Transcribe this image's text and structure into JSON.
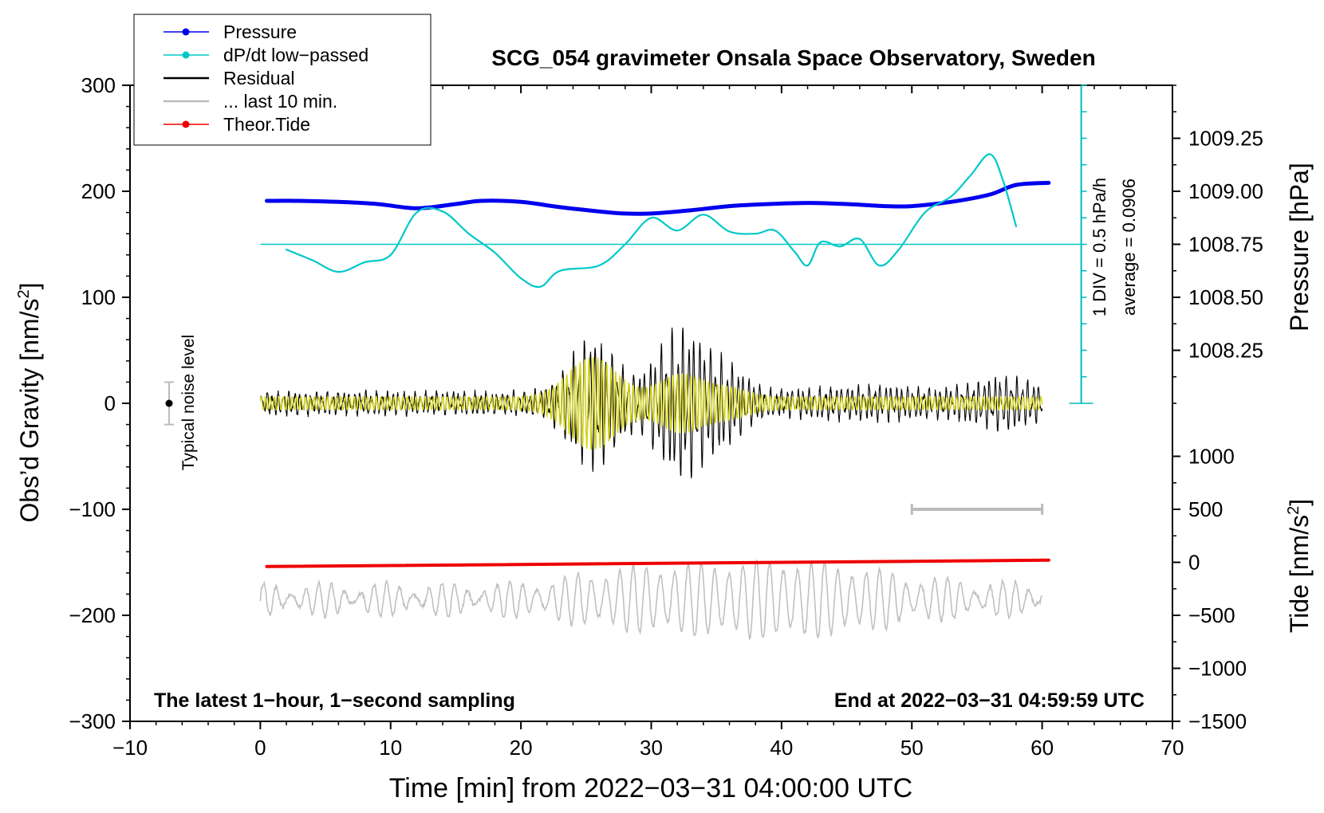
{
  "chart_data": {
    "type": "line",
    "title": "SCG_054 gravimeter Onsala Space Observatory, Sweden",
    "xlabel": "Time [min] from 2022−03−31 04:00:00 UTC",
    "ylabel_left": "Obs’d Gravity [nm/s²]",
    "ylabel_left_main": "Obs’d Gravity [nm/s",
    "ylabel_left_sup": "2",
    "ylabel_left_end": "]",
    "ylabel_right_pressure": "Pressure [hPa]",
    "ylabel_right_tide": "Tide [nm/s²]",
    "ylabel_right_tide_main": "Tide [nm/s",
    "ylabel_right_tide_sup": "2",
    "ylabel_right_tide_end": "]",
    "xlim": [
      -10,
      70
    ],
    "ylim_left": [
      -300,
      300
    ],
    "x_ticks": [
      -10,
      0,
      10,
      20,
      30,
      40,
      50,
      60,
      70
    ],
    "x_tick_labels": [
      "−10",
      "0",
      "10",
      "20",
      "30",
      "40",
      "50",
      "60",
      "70"
    ],
    "y_left_ticks": [
      -300,
      -200,
      -100,
      0,
      100,
      200,
      300
    ],
    "y_left_tick_labels": [
      "−300",
      "−200",
      "−100",
      "0",
      "100",
      "200",
      "300"
    ],
    "pressure_axis": {
      "ticks": [
        1008.25,
        1008.5,
        1008.75,
        1009.0,
        1009.25
      ],
      "labels": [
        "1008.25",
        "1008.50",
        "1008.75",
        "1009.00",
        "1009.25"
      ],
      "gravity_equiv": {
        "ref_value": 1008.75,
        "ref_gravity": 150,
        "gravity_per_hpa": 200
      }
    },
    "tide_axis": {
      "ticks": [
        -1500,
        -1000,
        -500,
        0,
        500,
        1000
      ],
      "labels": [
        "−1500",
        "−1000",
        "−500",
        "0",
        "500",
        "1000"
      ],
      "gravity_equiv": {
        "ref_value": 0,
        "ref_gravity": -150,
        "gravity_per_unit": 0.1
      }
    },
    "legend": {
      "placement": "top-left",
      "entries": [
        {
          "label": "Pressure",
          "color": "#0000ee",
          "style": "line-dot"
        },
        {
          "label": "dP/dt low−passed",
          "color": "#00c8c8",
          "style": "line-dot"
        },
        {
          "label": "Residual",
          "color": "#000000",
          "style": "line"
        },
        {
          "label": "... last 10 min.",
          "color": "#bbbbbb",
          "style": "line"
        },
        {
          "label": "Theor.Tide",
          "color": "#ee0000",
          "style": "line-dot"
        }
      ]
    },
    "annotations": {
      "bottom_left": "The latest 1−hour, 1−second sampling",
      "bottom_right": "End at 2022−03−31 04:59:59 UTC",
      "noise_label": "Typical noise level",
      "div_label": "1 DIV = 0.5 hPa/h",
      "average_label": "average = 0.0906"
    },
    "noise_bar": {
      "x": -7,
      "y": 0,
      "half_range": 20
    },
    "ten_min_bar": {
      "x_start": 50,
      "x_end": 60,
      "y": -100
    },
    "dpdt_scale": {
      "x": 63,
      "y_bottom": 0,
      "y_top": 300,
      "baseline_y": 150
    },
    "series": [
      {
        "name": "Pressure",
        "color": "#0000ee",
        "units": "gravity-equivalent nm/s²",
        "x": [
          0.5,
          3,
          6,
          9,
          12,
          15,
          17,
          20,
          23,
          26,
          28,
          30,
          33,
          36,
          39,
          42,
          45,
          48,
          50,
          53,
          56,
          58,
          60.5
        ],
        "values": [
          191,
          191,
          190,
          188,
          184,
          188,
          191,
          190,
          185,
          181,
          179,
          179,
          182,
          186,
          188,
          189,
          188,
          186,
          186,
          190,
          197,
          206,
          208
        ]
      },
      {
        "name": "dP/dt low-passed",
        "color": "#00c8c8",
        "units": "gravity-equivalent nm/s²",
        "x": [
          2,
          4,
          6,
          8,
          10,
          12,
          14,
          16,
          18,
          20,
          21.5,
          23,
          26,
          28,
          30,
          32,
          34,
          36,
          38,
          39.5,
          41,
          42,
          43,
          44.5,
          46,
          47.5,
          49,
          51,
          53,
          54.5,
          56,
          57,
          58
        ],
        "values": [
          145,
          135,
          124,
          133,
          140,
          180,
          181,
          160,
          142,
          118,
          110,
          125,
          130,
          150,
          175,
          163,
          178,
          162,
          160,
          163,
          143,
          130,
          152,
          148,
          155,
          130,
          145,
          180,
          195,
          215,
          235,
          210,
          167
        ]
      },
      {
        "name": "Theor.Tide",
        "color": "#ee0000",
        "units": "nm/s² (tide axis)",
        "x": [
          0.5,
          60.5
        ],
        "values": [
          -40,
          20
        ]
      }
    ]
  }
}
